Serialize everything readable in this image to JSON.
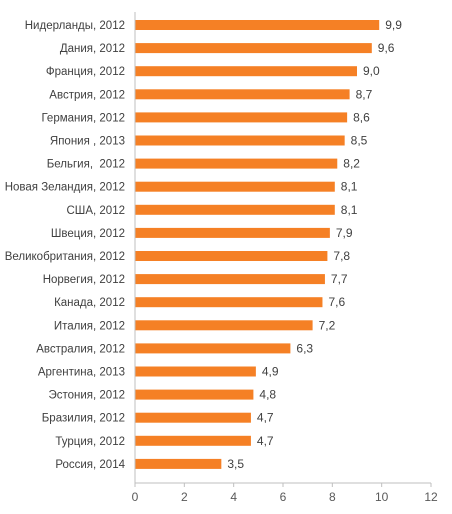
{
  "chart_data": {
    "type": "bar",
    "orientation": "horizontal",
    "categories": [
      "Нидерланды, 2012",
      "Дания, 2012",
      "Франция, 2012",
      "Австрия, 2012",
      "Германия, 2012",
      "Япония , 2013",
      "Бельгия,  2012",
      "Новая Зеландия, 2012",
      "США, 2012",
      "Швеция, 2012",
      "Великобритания, 2012",
      "Норвегия, 2012",
      "Канада, 2012",
      "Италия, 2012",
      "Австралия, 2012",
      "Аргентина, 2013",
      "Эстония, 2012",
      "Бразилия, 2012",
      "Турция, 2012",
      "Россия, 2014"
    ],
    "values": [
      9.9,
      9.6,
      9.0,
      8.7,
      8.6,
      8.5,
      8.2,
      8.1,
      8.1,
      7.9,
      7.8,
      7.7,
      7.6,
      7.2,
      6.3,
      4.9,
      4.8,
      4.7,
      4.7,
      3.5
    ],
    "value_labels": [
      "9,9",
      "9,6",
      "9,0",
      "8,7",
      "8,6",
      "8,5",
      "8,2",
      "8,1",
      "8,1",
      "7,9",
      "7,8",
      "7,7",
      "7,6",
      "7,2",
      "6,3",
      "4,9",
      "4,8",
      "4,7",
      "4,7",
      "3,5"
    ],
    "x_ticks": [
      0,
      2,
      4,
      6,
      8,
      10,
      12
    ],
    "xlim": [
      0,
      12
    ],
    "grid": false,
    "legend": "none",
    "title": "",
    "xlabel": "",
    "ylabel": "",
    "colors": {
      "bar": "#F58025",
      "axis": "#BFBFBF",
      "text": "#404040"
    }
  }
}
